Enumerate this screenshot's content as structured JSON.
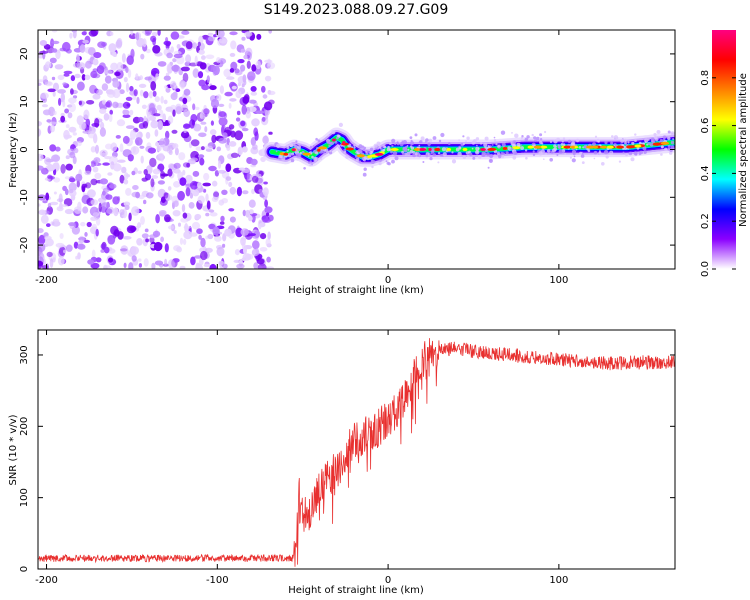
{
  "figure": {
    "title": "S149.2023.088.09.27.G09"
  },
  "chart_data": [
    {
      "type": "heatmap",
      "title": "",
      "xlabel": "Height of straight line (km)",
      "ylabel": "Frequency (Hz)",
      "xlim": [
        -205,
        168
      ],
      "ylim": [
        -25,
        25
      ],
      "xticks": [
        -200,
        -100,
        0,
        100
      ],
      "yticks": [
        -20,
        -10,
        0,
        10,
        20
      ],
      "noise_region_x": [
        -205,
        -68
      ],
      "signal_track": {
        "x": [
          -68,
          -60,
          -55,
          -50,
          -45,
          -40,
          -35,
          -30,
          -27,
          -24,
          -20,
          -15,
          -10,
          -5,
          0,
          10,
          20,
          40,
          60,
          80,
          100,
          120,
          140,
          168
        ],
        "frequency_hz": [
          -0.5,
          -1,
          0,
          -0.5,
          -1.5,
          0,
          1,
          2.5,
          2,
          0.5,
          -0.5,
          -1.5,
          -1.5,
          -1,
          0,
          0,
          0,
          0,
          0,
          0.5,
          0.5,
          0.5,
          0.5,
          1.5
        ]
      },
      "colorbar": {
        "label": "Normalized spectral amplitude",
        "range": [
          0,
          1
        ],
        "ticks": [
          "0.0",
          "0.2",
          "0.4",
          "0.6",
          "0.8"
        ],
        "tick_values": [
          0.0,
          0.2,
          0.4,
          0.6,
          0.8
        ],
        "colors": [
          "#ffffff",
          "#8b00ff",
          "#0000ff",
          "#00ffff",
          "#00ff00",
          "#ffff00",
          "#ff8000",
          "#ff0000",
          "#ff0080"
        ]
      },
      "grid": false
    },
    {
      "type": "line",
      "title": "",
      "xlabel": "Height of straight line (km)",
      "ylabel": "SNR (10 * v/v)",
      "xlim": [
        -205,
        168
      ],
      "ylim": [
        0,
        335
      ],
      "xticks": [
        -200,
        -100,
        0,
        100
      ],
      "yticks": [
        0,
        100,
        200,
        300
      ],
      "color": "#e8302f",
      "grid": false,
      "series": [
        {
          "x": [
            -205,
            -150,
            -100,
            -70,
            -55,
            -52,
            -48,
            -40,
            -30,
            -20,
            -10,
            0,
            10,
            20,
            30,
            40,
            50,
            70,
            90,
            110,
            130,
            150,
            168
          ],
          "values": [
            15,
            15,
            15,
            15,
            15,
            100,
            70,
            110,
            140,
            180,
            190,
            210,
            240,
            290,
            305,
            310,
            305,
            300,
            295,
            292,
            288,
            290,
            290
          ]
        }
      ]
    }
  ]
}
